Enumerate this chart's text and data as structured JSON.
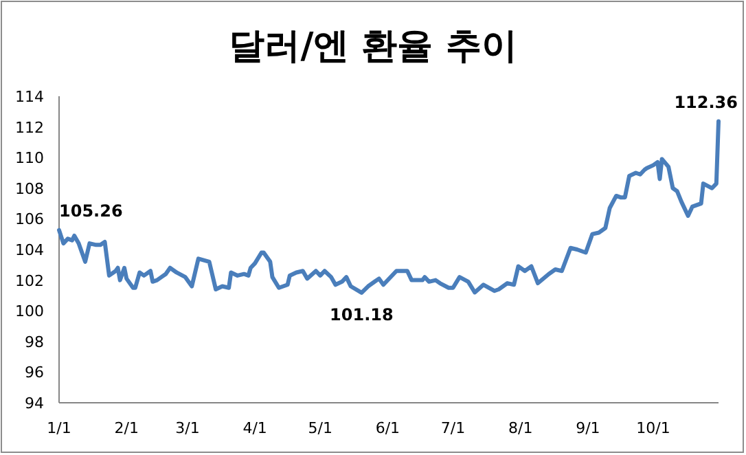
{
  "chart_data": {
    "type": "line",
    "title": "달러/엔 환율 추이",
    "x": [
      "--01-01",
      "--01-03",
      "--01-05",
      "--01-07",
      "--01-08",
      "--01-10",
      "--01-13",
      "--01-15",
      "--01-18",
      "--01-20",
      "--01-22",
      "--01-24",
      "--01-27",
      "--01-28",
      "--01-29",
      "--01-31",
      "--02-01",
      "--02-04",
      "--02-05",
      "--02-07",
      "--02-09",
      "--02-12",
      "--02-13",
      "--02-15",
      "--02-17",
      "--02-19",
      "--02-21",
      "--02-24",
      "--02-28",
      "--03-03",
      "--03-06",
      "--03-11",
      "--03-14",
      "--03-17",
      "--03-20",
      "--03-21",
      "--03-24",
      "--03-27",
      "--03-29",
      "--03-30",
      "--04-01",
      "--04-04",
      "--04-05",
      "--04-08",
      "--04-09",
      "--04-12",
      "--04-16",
      "--04-17",
      "--04-20",
      "--04-23",
      "--04-25",
      "--04-29",
      "--05-01",
      "--05-03",
      "--05-06",
      "--05-08",
      "--05-11",
      "--05-13",
      "--05-15",
      "--05-20",
      "--05-23",
      "--05-26",
      "--05-28",
      "--05-30",
      "--06-05",
      "--06-10",
      "--06-12",
      "--06-17",
      "--06-18",
      "--06-20",
      "--06-23",
      "--06-25",
      "--06-29",
      "--07-01",
      "--07-04",
      "--07-08",
      "--07-11",
      "--07-15",
      "--07-20",
      "--07-22",
      "--07-26",
      "--07-29",
      "--07-31",
      "--08-03",
      "--08-06",
      "--08-09",
      "--08-14",
      "--08-17",
      "--08-20",
      "--08-24",
      "--08-27",
      "--08-31",
      "--09-03",
      "--09-06",
      "--09-09",
      "--09-11",
      "--09-14",
      "--09-16",
      "--09-18",
      "--09-20",
      "--09-23",
      "--09-25",
      "--09-27",
      "--09-28",
      "--10-01",
      "--10-03",
      "--10-04",
      "--10-05",
      "--10-08",
      "--10-10",
      "--10-12",
      "--10-14",
      "--10-17",
      "--10-19",
      "--10-23",
      "--10-24",
      "--10-28",
      "--10-30",
      "--10-31"
    ],
    "series": [
      {
        "color": "#4a7ebb",
        "values": [
          105.26,
          104.4,
          104.7,
          104.6,
          104.9,
          104.4,
          103.2,
          104.4,
          104.3,
          104.3,
          104.5,
          102.3,
          102.6,
          102.8,
          102.0,
          102.8,
          102.1,
          101.5,
          101.5,
          102.5,
          102.3,
          102.6,
          101.9,
          102.0,
          102.2,
          102.4,
          102.8,
          102.5,
          102.2,
          101.6,
          103.4,
          103.2,
          101.4,
          101.6,
          101.5,
          102.5,
          102.3,
          102.4,
          102.3,
          102.8,
          103.1,
          103.8,
          103.8,
          103.2,
          102.2,
          101.5,
          101.7,
          102.3,
          102.5,
          102.6,
          102.1,
          102.6,
          102.3,
          102.6,
          102.2,
          101.7,
          101.9,
          102.2,
          101.6,
          101.18,
          101.6,
          101.9,
          102.1,
          101.7,
          102.6,
          102.6,
          102.0,
          102.0,
          102.2,
          101.9,
          102.0,
          101.8,
          101.5,
          101.5,
          102.2,
          101.9,
          101.2,
          101.7,
          101.3,
          101.4,
          101.8,
          101.7,
          102.9,
          102.6,
          102.9,
          101.8,
          102.4,
          102.7,
          102.6,
          104.1,
          104.0,
          103.8,
          105.0,
          105.1,
          105.4,
          106.7,
          107.5,
          107.4,
          107.4,
          108.8,
          109.0,
          108.9,
          109.2,
          109.3,
          109.5,
          109.7,
          108.6,
          109.9,
          109.4,
          108.0,
          107.8,
          107.1,
          106.2,
          106.8,
          107.0,
          108.3,
          108.0,
          108.3,
          112.36
        ]
      }
    ],
    "xlim": [
      "--01-01",
      "--10-31"
    ],
    "xticks": [
      {
        "value": "--01-01",
        "label": "1/1"
      },
      {
        "value": "--02-01",
        "label": "2/1"
      },
      {
        "value": "--03-01",
        "label": "3/1"
      },
      {
        "value": "--04-01",
        "label": "4/1"
      },
      {
        "value": "--05-01",
        "label": "5/1"
      },
      {
        "value": "--06-01",
        "label": "6/1"
      },
      {
        "value": "--07-01",
        "label": "7/1"
      },
      {
        "value": "--08-01",
        "label": "8/1"
      },
      {
        "value": "--09-01",
        "label": "9/1"
      },
      {
        "value": "--10-01",
        "label": "10/1"
      }
    ],
    "ylim": [
      94,
      114
    ],
    "yticks": [
      94,
      96,
      98,
      100,
      102,
      104,
      106,
      108,
      110,
      112,
      114
    ],
    "annotations": [
      {
        "text": "105.26",
        "x": "--01-01",
        "y": 105.26
      },
      {
        "text": "101.18",
        "x": "--05-20",
        "y": 101.18
      },
      {
        "text": "112.36",
        "x": "--10-31",
        "y": 112.36
      }
    ],
    "grid": false,
    "marker": "none",
    "line_style": "solid"
  }
}
